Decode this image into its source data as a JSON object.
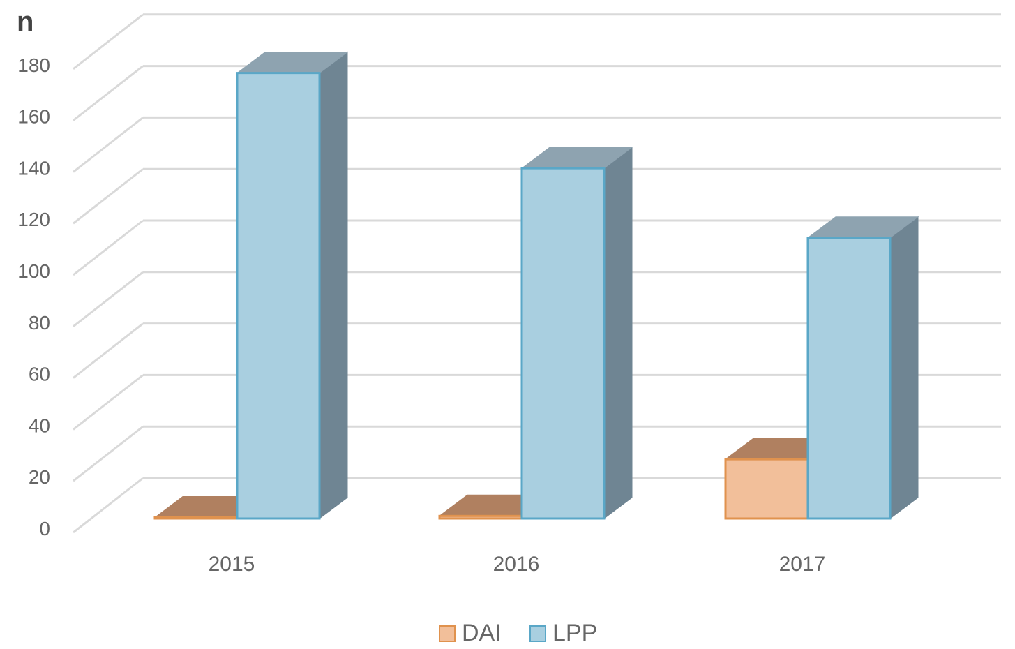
{
  "chart_data": {
    "type": "bar",
    "style": "3d-clustered-column",
    "ylabel": "n",
    "categories": [
      "2015",
      "2016",
      "2017"
    ],
    "series": [
      {
        "name": "DAI",
        "values": [
          0,
          1,
          23
        ]
      },
      {
        "name": "LPP",
        "values": [
          173,
          136,
          109
        ]
      }
    ],
    "ylim": [
      0,
      180
    ],
    "yticks": [
      0,
      20,
      40,
      60,
      80,
      100,
      120,
      140,
      160,
      180
    ],
    "grid": true,
    "legend_position": "bottom",
    "colors": {
      "DAI": {
        "front": "#f2bf9a",
        "top": "#b08060",
        "border": "#e0924e"
      },
      "LPP": {
        "front": "#a9cfe0",
        "top": "#8ea3b0",
        "side": "#6f8593",
        "border": "#5aa7c7"
      }
    }
  }
}
